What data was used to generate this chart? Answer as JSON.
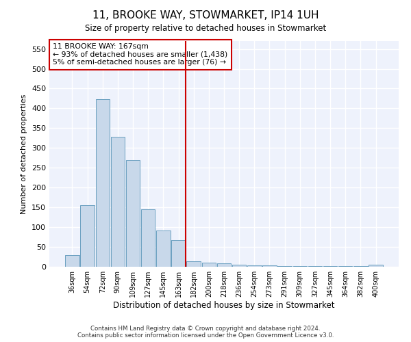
{
  "title": "11, BROOKE WAY, STOWMARKET, IP14 1UH",
  "subtitle": "Size of property relative to detached houses in Stowmarket",
  "xlabel": "Distribution of detached houses by size in Stowmarket",
  "ylabel": "Number of detached properties",
  "bar_color": "#c8d8ea",
  "bar_edge_color": "#6a9fc0",
  "background_color": "#eef2fc",
  "grid_color": "#ffffff",
  "categories": [
    "36sqm",
    "54sqm",
    "72sqm",
    "90sqm",
    "109sqm",
    "127sqm",
    "145sqm",
    "163sqm",
    "182sqm",
    "200sqm",
    "218sqm",
    "236sqm",
    "254sqm",
    "273sqm",
    "291sqm",
    "309sqm",
    "327sqm",
    "345sqm",
    "364sqm",
    "382sqm",
    "400sqm"
  ],
  "values": [
    30,
    155,
    423,
    328,
    270,
    145,
    92,
    68,
    13,
    10,
    8,
    5,
    4,
    3,
    2,
    2,
    1,
    1,
    1,
    1,
    5
  ],
  "ylim": [
    0,
    570
  ],
  "yticks": [
    0,
    50,
    100,
    150,
    200,
    250,
    300,
    350,
    400,
    450,
    500,
    550
  ],
  "property_label": "11 BROOKE WAY: 167sqm",
  "annotation_line1": "← 93% of detached houses are smaller (1,438)",
  "annotation_line2": "5% of semi-detached houses are larger (76) →",
  "vline_color": "#cc0000",
  "vline_position": 7.46,
  "footer1": "Contains HM Land Registry data © Crown copyright and database right 2024.",
  "footer2": "Contains public sector information licensed under the Open Government Licence v3.0."
}
